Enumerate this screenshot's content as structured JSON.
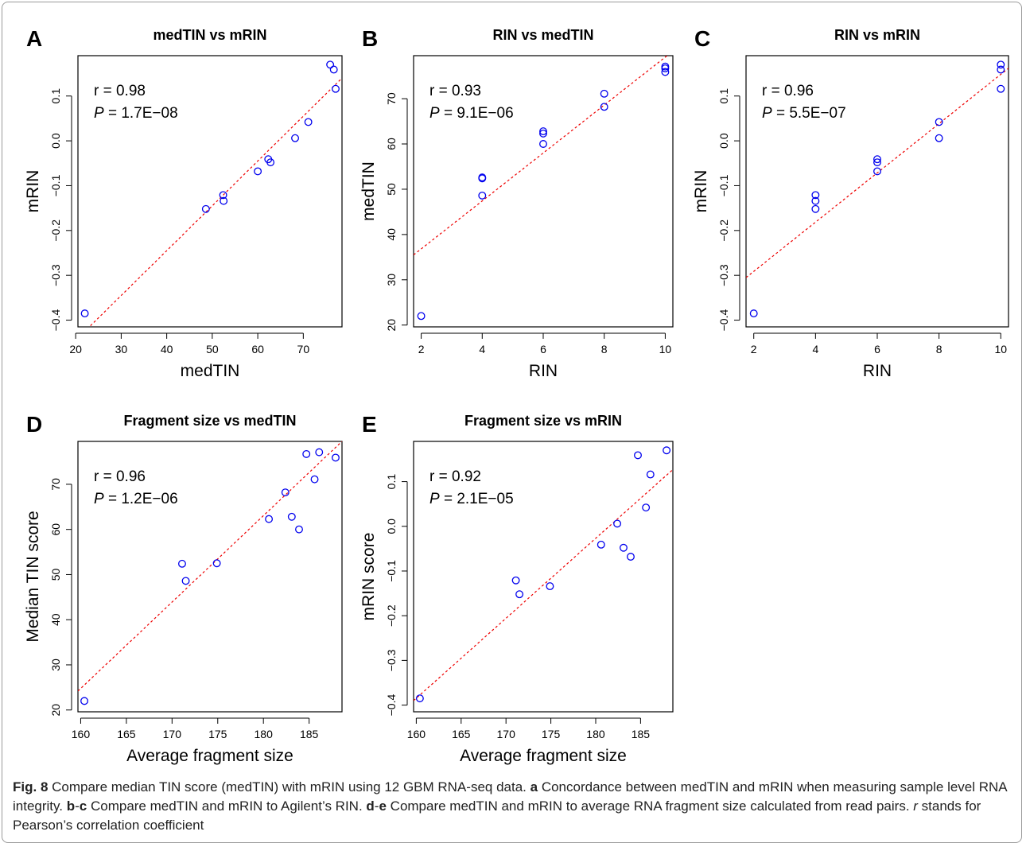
{
  "caption": {
    "fig_label": "Fig. 8",
    "s0": " Compare median TIN score (medTIN) with mRIN using 12 GBM RNA-seq data. ",
    "a": "a",
    "s1": " Concordance between medTIN and mRIN when measuring sample level RNA integrity. ",
    "b": "b",
    "dash1": "-",
    "c": "c",
    "s2": " Compare medTIN and mRIN to Agilent’s RIN. ",
    "d": "d",
    "dash2": "-",
    "e": "e",
    "s3": " Compare medTIN and mRIN to average RNA fragment size calculated from read pairs. ",
    "r": "r",
    "s4": " stands for Pearson’s correlation coefficient"
  },
  "colors": {
    "points": "#0000ee",
    "fit_line": "#ee0000",
    "axes": "#000000"
  },
  "chart_data": [
    {
      "panel": "A",
      "type": "scatter",
      "title": "medTIN vs mRIN",
      "xlabel": "medTIN",
      "ylabel": "mRIN",
      "xlim": [
        20.5,
        78.5
      ],
      "ylim": [
        -0.415,
        0.19
      ],
      "xticks": [
        20,
        30,
        40,
        50,
        60,
        70
      ],
      "yticks": [
        -0.4,
        -0.3,
        -0.2,
        -0.1,
        0.0,
        0.1
      ],
      "ytick_labels": [
        "−0.4",
        "−0.3",
        "−0.2",
        "−0.1",
        "0.0",
        "0.1"
      ],
      "r_text": "r = 0.98",
      "p_label": "P",
      "p_value": " = 1.7E−08",
      "x": [
        22,
        48.6,
        52.4,
        52.5,
        60.0,
        62.3,
        62.8,
        68.2,
        71.1,
        75.9,
        76.7,
        77.1
      ],
      "y": [
        -0.385,
        -0.152,
        -0.121,
        -0.134,
        -0.068,
        -0.041,
        -0.048,
        0.006,
        0.042,
        0.17,
        0.159,
        0.116
      ],
      "fit": [
        [
          22.5,
          -0.42
        ],
        [
          78.5,
          0.14
        ]
      ]
    },
    {
      "panel": "B",
      "type": "scatter",
      "title": "RIN vs medTIN",
      "xlabel": "RIN",
      "ylabel": "medTIN",
      "xlim": [
        1.75,
        10.25
      ],
      "ylim": [
        19.6,
        79.5
      ],
      "xticks": [
        2,
        4,
        6,
        8,
        10
      ],
      "yticks": [
        20,
        30,
        40,
        50,
        60,
        70
      ],
      "ytick_labels": [
        "20",
        "30",
        "40",
        "50",
        "60",
        "70"
      ],
      "r_text": "r = 0.93",
      "p_label": "P",
      "p_value": " = 9.1E−06",
      "x": [
        2,
        4,
        4,
        4,
        6,
        6,
        6,
        8,
        8,
        10,
        10,
        10
      ],
      "y": [
        22,
        48.6,
        52.4,
        52.6,
        60.0,
        62.3,
        62.8,
        68.2,
        71.1,
        75.9,
        76.7,
        77.1
      ],
      "fit": [
        [
          1.75,
          35.5
        ],
        [
          10.25,
          80.5
        ]
      ]
    },
    {
      "panel": "C",
      "type": "scatter",
      "title": "RIN vs mRIN",
      "xlabel": "RIN",
      "ylabel": "mRIN",
      "xlim": [
        1.75,
        10.25
      ],
      "ylim": [
        -0.415,
        0.19
      ],
      "xticks": [
        2,
        4,
        6,
        8,
        10
      ],
      "yticks": [
        -0.4,
        -0.3,
        -0.2,
        -0.1,
        0.0,
        0.1
      ],
      "ytick_labels": [
        "−0.4",
        "−0.3",
        "−0.2",
        "−0.1",
        "0.0",
        "0.1"
      ],
      "r_text": "r = 0.96",
      "p_label": "P",
      "p_value": " = 5.5E−07",
      "x": [
        2,
        4,
        4,
        4,
        6,
        6,
        6,
        8,
        8,
        10,
        10,
        10
      ],
      "y": [
        -0.385,
        -0.121,
        -0.134,
        -0.152,
        -0.041,
        -0.048,
        -0.068,
        0.042,
        0.006,
        0.17,
        0.159,
        0.116
      ],
      "fit": [
        [
          1.75,
          -0.305
        ],
        [
          10.25,
          0.162
        ]
      ]
    },
    {
      "panel": "D",
      "type": "scatter",
      "title": "Fragment size vs medTIN",
      "xlabel": "Average fragment size",
      "ylabel": "Median TIN score",
      "xlim": [
        159.7,
        188.6
      ],
      "ylim": [
        19.6,
        79.5
      ],
      "xticks": [
        160,
        165,
        170,
        175,
        180,
        185
      ],
      "yticks": [
        20,
        30,
        40,
        50,
        60,
        70
      ],
      "ytick_labels": [
        "20",
        "30",
        "40",
        "50",
        "60",
        "70"
      ],
      "r_text": "r = 0.96",
      "p_label": "P",
      "p_value": " = 1.2E−06",
      "x": [
        160.4,
        171.1,
        171.5,
        174.9,
        180.6,
        182.4,
        183.1,
        183.9,
        184.7,
        185.6,
        186.1,
        187.9
      ],
      "y": [
        22,
        52.4,
        48.6,
        52.5,
        62.3,
        68.2,
        62.8,
        60.0,
        76.7,
        71.1,
        77.1,
        75.9
      ],
      "fit": [
        [
          159.7,
          24.2
        ],
        [
          188.6,
          79.5
        ]
      ]
    },
    {
      "panel": "E",
      "type": "scatter",
      "title": "Fragment size vs mRIN",
      "xlabel": "Average fragment size",
      "ylabel": "mRIN score",
      "xlim": [
        159.7,
        188.6
      ],
      "ylim": [
        -0.415,
        0.19
      ],
      "xticks": [
        160,
        165,
        170,
        175,
        180,
        185
      ],
      "yticks": [
        -0.4,
        -0.3,
        -0.2,
        -0.1,
        0.0,
        0.1
      ],
      "ytick_labels": [
        "−0.4",
        "−0.3",
        "−0.2",
        "−0.1",
        "0.0",
        "0.1"
      ],
      "r_text": "r = 0.92",
      "p_label": "P",
      "p_value": " = 2.1E−05",
      "x": [
        160.4,
        171.1,
        171.5,
        174.9,
        180.6,
        182.4,
        183.1,
        183.9,
        184.7,
        185.6,
        186.1,
        187.9
      ],
      "y": [
        -0.385,
        -0.121,
        -0.152,
        -0.134,
        -0.041,
        0.006,
        -0.048,
        -0.068,
        0.159,
        0.042,
        0.116,
        0.17
      ],
      "fit": [
        [
          159.7,
          -0.39
        ],
        [
          188.6,
          0.127
        ]
      ]
    }
  ]
}
